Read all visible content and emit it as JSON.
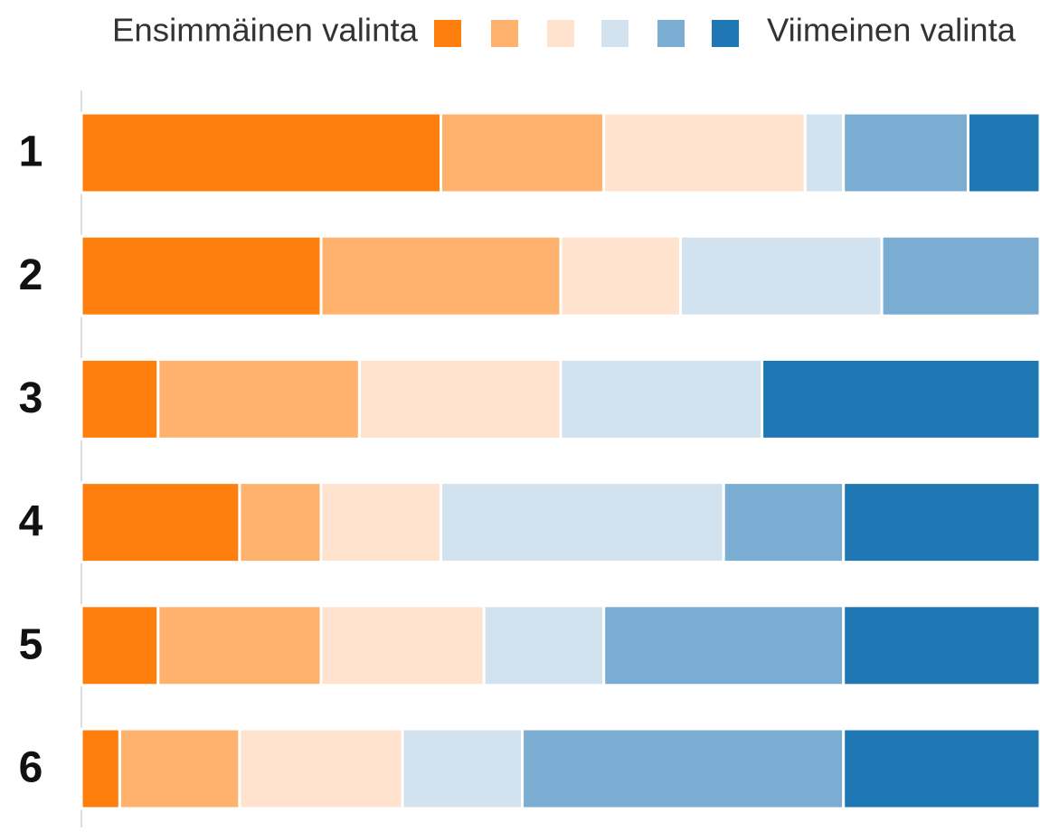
{
  "chart_data": {
    "type": "stacked_barh",
    "legend_start": "Ensimmäinen valinta",
    "legend_end": "Viimeinen valinta",
    "categories": [
      "1",
      "2",
      "3",
      "4",
      "5",
      "6"
    ],
    "xlim": [
      0,
      100
    ],
    "series": [
      {
        "color": "#ff7f0e",
        "values": [
          37.5,
          25,
          8,
          16.5,
          8,
          4
        ]
      },
      {
        "color": "#ffb26e",
        "values": [
          17,
          25,
          21,
          8.5,
          17,
          12.5
        ]
      },
      {
        "color": "#ffe3cf",
        "values": [
          21,
          12.5,
          21,
          12.5,
          17,
          17
        ]
      },
      {
        "color": "#d2e3ef",
        "values": [
          4,
          21,
          21,
          29.5,
          12.5,
          12.5
        ]
      },
      {
        "color": "#7badd2",
        "values": [
          13,
          16.5,
          0,
          12.5,
          25,
          33.5
        ]
      },
      {
        "color": "#1f77b4",
        "values": [
          7.5,
          0,
          29,
          20.5,
          20.5,
          20.5
        ]
      }
    ]
  }
}
